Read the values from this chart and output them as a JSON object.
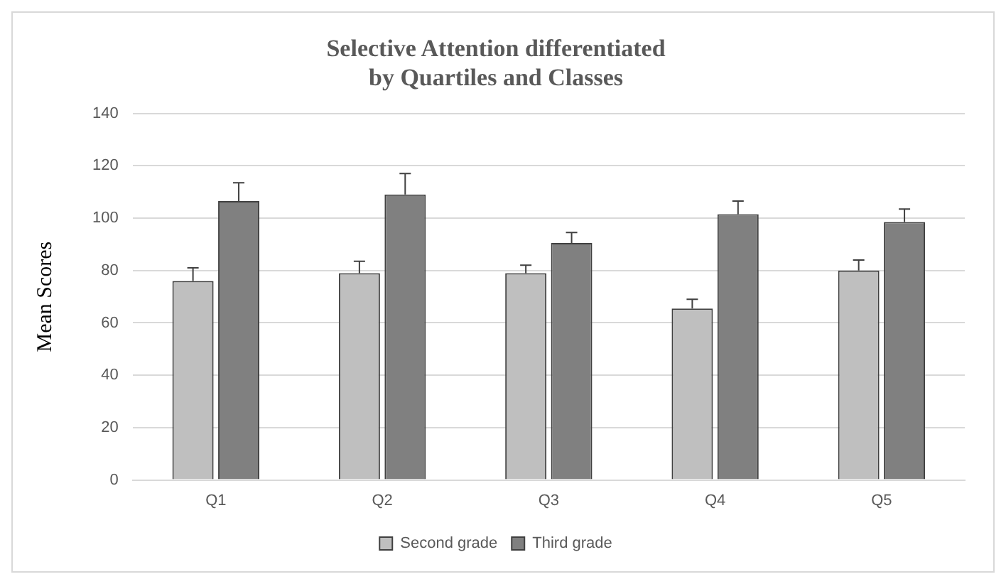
{
  "chart_data": {
    "type": "bar",
    "title": "Selective Attention differentiated\nby Quartiles and Classes",
    "ylabel": "Mean Scores",
    "categories": [
      "Q1",
      "Q2",
      "Q3",
      "Q4",
      "Q5"
    ],
    "series": [
      {
        "name": "Second grade",
        "color": "#bfbfbf",
        "values": [
          76,
          79,
          79,
          65.5,
          80
        ],
        "errors": [
          [
            76,
            81
          ],
          [
            79,
            83.5
          ],
          [
            79,
            82
          ],
          [
            65.5,
            69
          ],
          [
            80,
            84
          ]
        ]
      },
      {
        "name": "Third grade",
        "color": "#808080",
        "values": [
          106.5,
          109,
          90.5,
          101.5,
          98.5
        ],
        "errors": [
          [
            106.5,
            113.5
          ],
          [
            109,
            117
          ],
          [
            90.5,
            94.5
          ],
          [
            101.5,
            106.5
          ],
          [
            98.5,
            103.5
          ]
        ]
      }
    ],
    "ylim": [
      0,
      140
    ],
    "yticks": [
      0,
      20,
      40,
      60,
      80,
      100,
      120,
      140
    ],
    "grid": "y",
    "legend": "bottom"
  }
}
